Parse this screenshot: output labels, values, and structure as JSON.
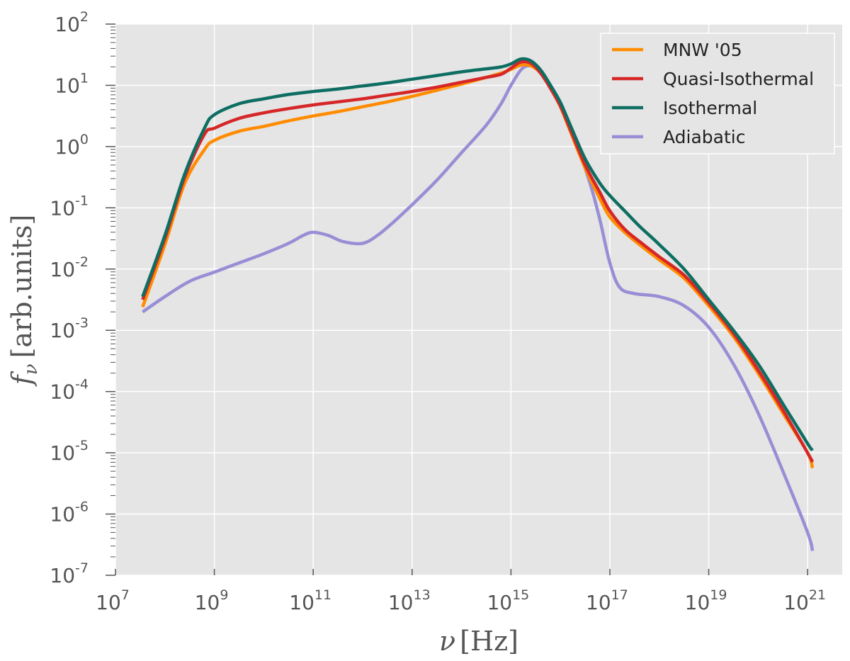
{
  "chart_data": {
    "type": "line",
    "title": "",
    "xscale": "log",
    "yscale": "log",
    "xlim_exp": [
      7,
      21.7
    ],
    "ylim_exp": [
      -7,
      2
    ],
    "xlabel": {
      "symbol": "ν",
      "unit": "[Hz]"
    },
    "ylabel": {
      "symbol": "f",
      "subscript": "ν",
      "unit": "[arb.units]"
    },
    "xticks": [
      {
        "base": "10",
        "exp": "7"
      },
      {
        "base": "10",
        "exp": "9"
      },
      {
        "base": "10",
        "exp": "11"
      },
      {
        "base": "10",
        "exp": "13"
      },
      {
        "base": "10",
        "exp": "15"
      },
      {
        "base": "10",
        "exp": "17"
      },
      {
        "base": "10",
        "exp": "19"
      },
      {
        "base": "10",
        "exp": "21"
      }
    ],
    "yticks": [
      {
        "base": "10",
        "exp": "-7"
      },
      {
        "base": "10",
        "exp": "-6"
      },
      {
        "base": "10",
        "exp": "-5"
      },
      {
        "base": "10",
        "exp": "-4"
      },
      {
        "base": "10",
        "exp": "-3"
      },
      {
        "base": "10",
        "exp": "-2"
      },
      {
        "base": "10",
        "exp": "-1"
      },
      {
        "base": "10",
        "exp": "0"
      },
      {
        "base": "10",
        "exp": "1"
      },
      {
        "base": "10",
        "exp": "2"
      }
    ],
    "grid": true,
    "legend_position": "top-right",
    "series": [
      {
        "name": "MNW '05",
        "color": "#FF8C00",
        "points": [
          [
            7.55,
            -2.62
          ],
          [
            8,
            -1.6
          ],
          [
            8.4,
            -0.6
          ],
          [
            8.8,
            -0.05
          ],
          [
            9,
            0.1
          ],
          [
            9.5,
            0.25
          ],
          [
            10,
            0.33
          ],
          [
            10.5,
            0.42
          ],
          [
            11,
            0.5
          ],
          [
            11.5,
            0.57
          ],
          [
            12,
            0.65
          ],
          [
            12.5,
            0.73
          ],
          [
            13,
            0.82
          ],
          [
            13.5,
            0.92
          ],
          [
            14,
            1.02
          ],
          [
            14.5,
            1.13
          ],
          [
            14.8,
            1.2
          ],
          [
            15,
            1.26
          ],
          [
            15.2,
            1.33
          ],
          [
            15.4,
            1.32
          ],
          [
            15.6,
            1.2
          ],
          [
            15.8,
            0.95
          ],
          [
            16,
            0.65
          ],
          [
            16.2,
            0.25
          ],
          [
            16.5,
            -0.35
          ],
          [
            16.8,
            -0.85
          ],
          [
            17,
            -1.15
          ],
          [
            17.3,
            -1.4
          ],
          [
            17.6,
            -1.6
          ],
          [
            18,
            -1.85
          ],
          [
            18.5,
            -2.15
          ],
          [
            19,
            -2.6
          ],
          [
            19.5,
            -3.1
          ],
          [
            20,
            -3.7
          ],
          [
            20.5,
            -4.35
          ],
          [
            21,
            -5.0
          ],
          [
            21.1,
            -5.25
          ]
        ]
      },
      {
        "name": "Quasi-Isothermal",
        "color": "#D62728",
        "points": [
          [
            7.55,
            -2.5
          ],
          [
            8,
            -1.5
          ],
          [
            8.4,
            -0.5
          ],
          [
            8.8,
            0.2
          ],
          [
            9,
            0.3
          ],
          [
            9.5,
            0.46
          ],
          [
            10,
            0.55
          ],
          [
            10.5,
            0.62
          ],
          [
            11,
            0.68
          ],
          [
            11.5,
            0.73
          ],
          [
            12,
            0.78
          ],
          [
            12.5,
            0.84
          ],
          [
            13,
            0.9
          ],
          [
            13.5,
            0.97
          ],
          [
            14,
            1.05
          ],
          [
            14.5,
            1.13
          ],
          [
            14.8,
            1.18
          ],
          [
            15,
            1.28
          ],
          [
            15.2,
            1.38
          ],
          [
            15.4,
            1.36
          ],
          [
            15.6,
            1.2
          ],
          [
            15.8,
            0.95
          ],
          [
            16,
            0.66
          ],
          [
            16.2,
            0.28
          ],
          [
            16.5,
            -0.3
          ],
          [
            16.8,
            -0.75
          ],
          [
            17,
            -1.05
          ],
          [
            17.3,
            -1.35
          ],
          [
            17.6,
            -1.55
          ],
          [
            18,
            -1.8
          ],
          [
            18.5,
            -2.1
          ],
          [
            19,
            -2.55
          ],
          [
            19.5,
            -3.05
          ],
          [
            20,
            -3.65
          ],
          [
            20.5,
            -4.3
          ],
          [
            21,
            -5.0
          ],
          [
            21.1,
            -5.15
          ]
        ]
      },
      {
        "name": "Isothermal",
        "color": "#0E6E62",
        "points": [
          [
            7.55,
            -2.45
          ],
          [
            8,
            -1.45
          ],
          [
            8.4,
            -0.45
          ],
          [
            8.8,
            0.3
          ],
          [
            9,
            0.52
          ],
          [
            9.5,
            0.7
          ],
          [
            10,
            0.78
          ],
          [
            10.5,
            0.85
          ],
          [
            11,
            0.9
          ],
          [
            11.5,
            0.94
          ],
          [
            12,
            0.99
          ],
          [
            12.5,
            1.04
          ],
          [
            13,
            1.1
          ],
          [
            13.5,
            1.16
          ],
          [
            14,
            1.22
          ],
          [
            14.5,
            1.27
          ],
          [
            14.8,
            1.3
          ],
          [
            15,
            1.35
          ],
          [
            15.2,
            1.43
          ],
          [
            15.4,
            1.4
          ],
          [
            15.6,
            1.25
          ],
          [
            15.8,
            1.0
          ],
          [
            16,
            0.72
          ],
          [
            16.2,
            0.35
          ],
          [
            16.5,
            -0.2
          ],
          [
            16.8,
            -0.6
          ],
          [
            17,
            -0.8
          ],
          [
            17.3,
            -1.05
          ],
          [
            17.6,
            -1.3
          ],
          [
            18,
            -1.6
          ],
          [
            18.5,
            -2.0
          ],
          [
            19,
            -2.5
          ],
          [
            19.5,
            -3.0
          ],
          [
            20,
            -3.55
          ],
          [
            20.5,
            -4.2
          ],
          [
            21,
            -4.85
          ],
          [
            21.1,
            -4.96
          ]
        ]
      },
      {
        "name": "Adiabatic",
        "color": "#988ED5",
        "points": [
          [
            7.55,
            -2.7
          ],
          [
            8,
            -2.45
          ],
          [
            8.5,
            -2.2
          ],
          [
            9,
            -2.05
          ],
          [
            9.5,
            -1.9
          ],
          [
            10,
            -1.75
          ],
          [
            10.5,
            -1.58
          ],
          [
            10.8,
            -1.45
          ],
          [
            11,
            -1.4
          ],
          [
            11.3,
            -1.45
          ],
          [
            11.6,
            -1.55
          ],
          [
            12,
            -1.58
          ],
          [
            12.3,
            -1.45
          ],
          [
            12.6,
            -1.25
          ],
          [
            13,
            -0.95
          ],
          [
            13.5,
            -0.55
          ],
          [
            14,
            -0.1
          ],
          [
            14.5,
            0.35
          ],
          [
            14.8,
            0.7
          ],
          [
            15,
            1.0
          ],
          [
            15.2,
            1.25
          ],
          [
            15.35,
            1.32
          ],
          [
            15.5,
            1.28
          ],
          [
            15.7,
            1.1
          ],
          [
            16,
            0.7
          ],
          [
            16.3,
            0.1
          ],
          [
            16.6,
            -0.6
          ],
          [
            16.8,
            -1.2
          ],
          [
            17,
            -1.9
          ],
          [
            17.2,
            -2.3
          ],
          [
            17.5,
            -2.4
          ],
          [
            18,
            -2.45
          ],
          [
            18.5,
            -2.6
          ],
          [
            19,
            -2.95
          ],
          [
            19.5,
            -3.55
          ],
          [
            20,
            -4.35
          ],
          [
            20.5,
            -5.3
          ],
          [
            21,
            -6.3
          ],
          [
            21.1,
            -6.6
          ]
        ]
      }
    ]
  }
}
